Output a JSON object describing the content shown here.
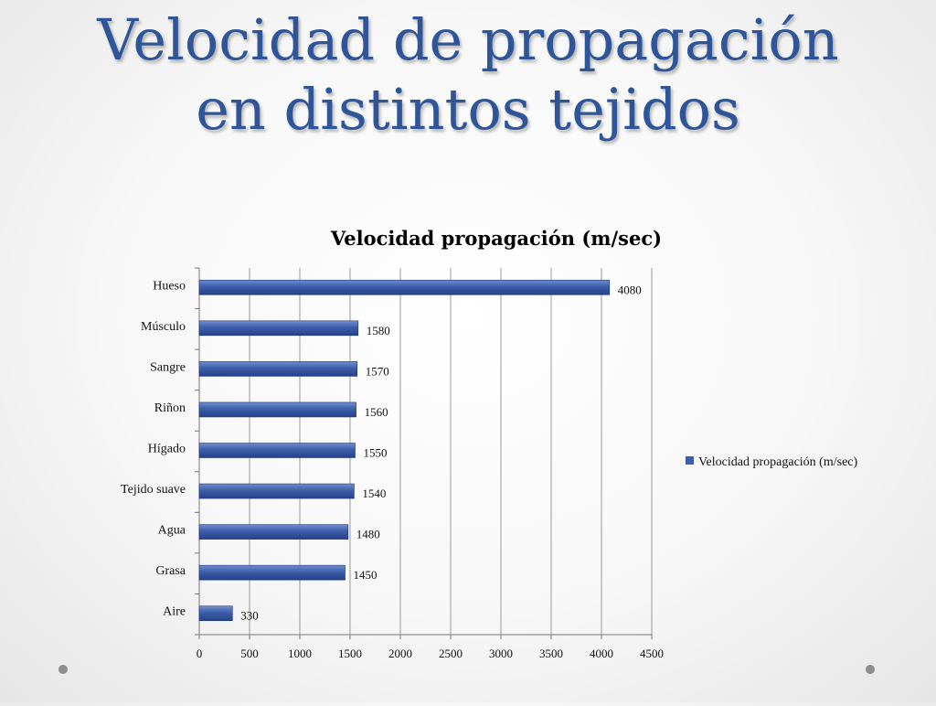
{
  "slide": {
    "title_line1": "Velocidad de propagación",
    "title_line2": "en distintos tejidos"
  },
  "colors": {
    "title": "#2e5597",
    "bar": "#3d5ea8",
    "bar_dark": "#25408a",
    "grid": "#9a9a9a"
  },
  "chart_data": {
    "type": "bar",
    "orientation": "horizontal",
    "title": "Velocidad propagación (m/sec)",
    "categories": [
      "Hueso",
      "Músculo",
      "Sangre",
      "Riñon",
      "Hígado",
      "Tejido suave",
      "Agua",
      "Grasa",
      "Aire"
    ],
    "series": [
      {
        "name": "Velocidad propagación (m/sec)",
        "values": [
          4080,
          1580,
          1570,
          1560,
          1550,
          1540,
          1480,
          1450,
          330
        ]
      }
    ],
    "xlim": [
      0,
      4500
    ],
    "xticks": [
      0,
      500,
      1000,
      1500,
      2000,
      2500,
      3000,
      3500,
      4000,
      4500
    ],
    "grid": "vertical",
    "legend_position": "right",
    "data_labels": true
  }
}
